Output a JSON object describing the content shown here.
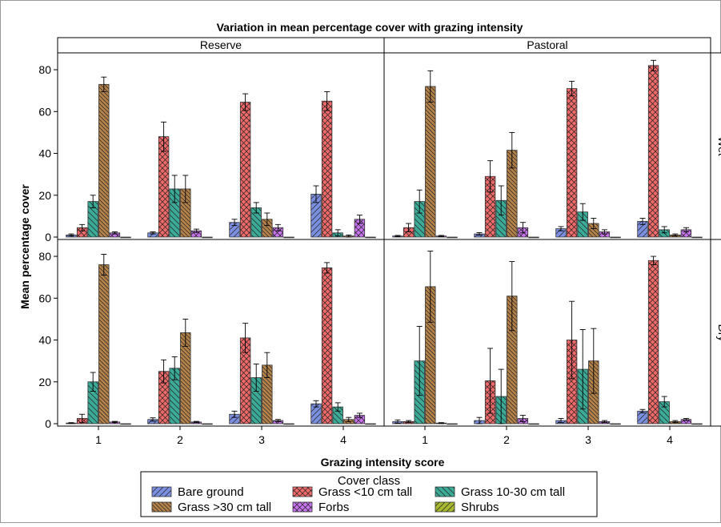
{
  "chart_data": {
    "type": "bar",
    "title": "Variation in mean percentage cover with grazing intensity",
    "xlabel": "Grazing intensity score",
    "ylabel": "Mean percentage cover",
    "categories": [
      "1",
      "2",
      "3",
      "4"
    ],
    "ylim": [
      0,
      85
    ],
    "yticks": [
      0,
      20,
      40,
      60,
      80
    ],
    "columns": [
      "Reserve",
      "Pastoral"
    ],
    "rows": [
      "Wet",
      "Dry"
    ],
    "legend": {
      "title": "Cover class",
      "placement": "bottom"
    },
    "series": [
      {
        "name": "Bare ground",
        "color": "#7B8FE0",
        "pattern": "hatch-forward"
      },
      {
        "name": "Grass <10 cm tall",
        "color": "#F06A6A",
        "pattern": "crosshatch"
      },
      {
        "name": "Grass 10-30 cm tall",
        "color": "#3BAA96",
        "pattern": "hatch-back"
      },
      {
        "name": "Grass >30 cm tall",
        "color": "#B5824A",
        "pattern": "hatch-back-dense"
      },
      {
        "name": "Forbs",
        "color": "#C873EE",
        "pattern": "crosshatch"
      },
      {
        "name": "Shrubs",
        "color": "#A8B830",
        "pattern": "hatch-forward"
      }
    ],
    "panels": [
      {
        "column": "Reserve",
        "row": "Wet",
        "values": [
          [
            1,
            4.5,
            17,
            73,
            2,
            0
          ],
          [
            2,
            48,
            23,
            23,
            3,
            0
          ],
          [
            7,
            64.5,
            14,
            8.5,
            4.5,
            0
          ],
          [
            20.5,
            65,
            2,
            0.5,
            8.5,
            0
          ]
        ],
        "errors": [
          [
            0.5,
            1.5,
            3,
            3.5,
            0.5,
            0
          ],
          [
            0.5,
            7,
            6.5,
            6.5,
            0.8,
            0
          ],
          [
            1.5,
            4,
            2.5,
            3,
            1.5,
            0
          ],
          [
            4,
            4.5,
            1.5,
            0.5,
            2,
            0
          ]
        ]
      },
      {
        "column": "Pastoral",
        "row": "Wet",
        "values": [
          [
            0.5,
            4.5,
            17,
            72,
            0.5,
            0
          ],
          [
            1.5,
            29,
            17.5,
            41.5,
            4.5,
            0
          ],
          [
            4,
            71,
            12,
            6.5,
            2.5,
            0
          ],
          [
            7.5,
            82,
            3.5,
            1,
            3.5,
            0
          ]
        ],
        "errors": [
          [
            0.3,
            2,
            5.5,
            7.5,
            0.3,
            0
          ],
          [
            0.6,
            7.5,
            7,
            8.5,
            2.5,
            0
          ],
          [
            1,
            3.5,
            4,
            2.5,
            1,
            0
          ],
          [
            1.5,
            2.5,
            1.5,
            0.5,
            1,
            0
          ]
        ]
      },
      {
        "column": "Reserve",
        "row": "Dry",
        "values": [
          [
            0.3,
            2.5,
            20,
            76,
            0.8,
            0
          ],
          [
            2,
            25,
            26.5,
            43.5,
            0.8,
            0
          ],
          [
            4.5,
            41,
            22,
            28,
            1.5,
            0
          ],
          [
            9.5,
            74.5,
            8,
            2,
            4,
            0
          ]
        ],
        "errors": [
          [
            0.2,
            2,
            4.5,
            5,
            0.3,
            0
          ],
          [
            0.8,
            5.5,
            5.5,
            6.5,
            0.3,
            0
          ],
          [
            1.5,
            7,
            6.5,
            6,
            0.5,
            0
          ],
          [
            1.5,
            2.5,
            2,
            1,
            1,
            0
          ]
        ]
      },
      {
        "column": "Pastoral",
        "row": "Dry",
        "values": [
          [
            1,
            1,
            30,
            65.5,
            0.3,
            0
          ],
          [
            1.5,
            20.5,
            13,
            61,
            2.5,
            0
          ],
          [
            1.5,
            40,
            26,
            30,
            1,
            0
          ],
          [
            6,
            78,
            10.5,
            1,
            2,
            0
          ]
        ],
        "errors": [
          [
            0.8,
            0.5,
            16.5,
            17,
            0.2,
            0
          ],
          [
            1.5,
            15.5,
            13,
            16.5,
            1.5,
            0
          ],
          [
            1,
            18.5,
            19,
            15.5,
            0.5,
            0
          ],
          [
            0.8,
            2,
            2.5,
            0.5,
            0.5,
            0
          ]
        ]
      }
    ]
  }
}
